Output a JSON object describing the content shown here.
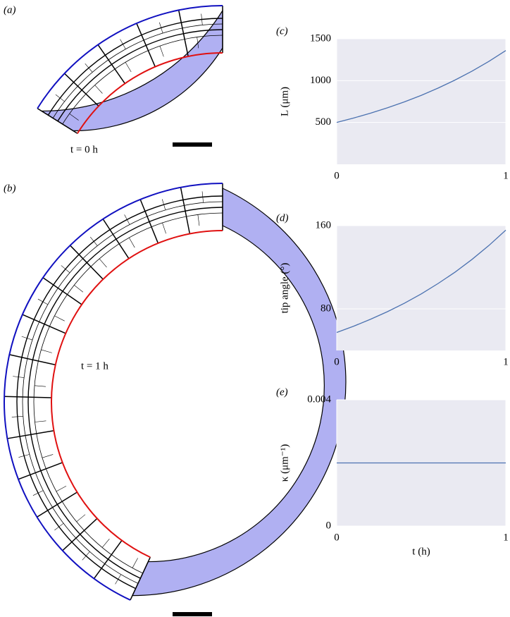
{
  "panels": [
    {
      "label": "(a)",
      "caption": "t = 0 h"
    },
    {
      "label": "(b)",
      "caption": "t = 1 h"
    }
  ],
  "chart_data": [
    {
      "type": "line",
      "label": "(c)",
      "ylabel": "L (μm)",
      "color": "#4c72b0",
      "x": [
        0,
        0.1,
        0.2,
        0.3,
        0.4,
        0.5,
        0.6,
        0.7,
        0.8,
        0.9,
        1
      ],
      "values": [
        500,
        553,
        611,
        675,
        746,
        824,
        911,
        1007,
        1113,
        1230,
        1359
      ],
      "xlim": [
        0,
        1
      ],
      "xticks": [
        0,
        1
      ],
      "ylim": [
        0,
        1500
      ],
      "yticks": [
        500,
        1000,
        1500
      ],
      "grid": true
    },
    {
      "type": "line",
      "label": "(d)",
      "ylabel": "tip angle (°)",
      "color": "#4c72b0",
      "x": [
        0,
        0.1,
        0.2,
        0.3,
        0.4,
        0.5,
        0.6,
        0.7,
        0.8,
        0.9,
        1
      ],
      "values": [
        57.3,
        63.3,
        70.0,
        77.3,
        85.4,
        94.4,
        104.4,
        115.3,
        127.5,
        140.9,
        155.7
      ],
      "xlim": [
        0,
        1
      ],
      "xticks": [
        0,
        1
      ],
      "ylim": [
        40,
        160
      ],
      "yticks": [
        80,
        160
      ],
      "grid": true
    },
    {
      "type": "line",
      "label": "(e)",
      "ylabel": "κ (μm⁻¹)",
      "xlabel": "t (h)",
      "color": "#4c72b0",
      "x": [
        0,
        1
      ],
      "values": [
        0.002,
        0.002
      ],
      "xlim": [
        0,
        1
      ],
      "xticks": [
        0,
        1
      ],
      "ylim": [
        0,
        0.004
      ],
      "yticks": [
        0,
        0.004
      ],
      "grid": true
    }
  ]
}
